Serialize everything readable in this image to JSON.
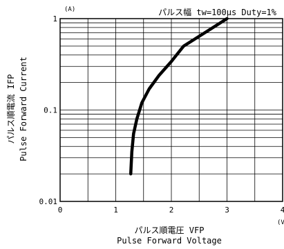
{
  "chart_data": {
    "type": "line",
    "title": "パルス幅 tw=100μs Duty=1%",
    "y_unit": "(A)",
    "x_unit": "(V)",
    "xlabel_jp": "パルス順電圧 VFP",
    "xlabel_en": "Pulse Forward Voltage",
    "ylabel_jp": "パルス順電流 IFP",
    "ylabel_en": "Pulse Forward Current",
    "x_scale": "linear",
    "y_scale": "log",
    "xlim": [
      0,
      4
    ],
    "ylim": [
      0.01,
      1
    ],
    "x_ticks": [
      "0",
      "1",
      "2",
      "3",
      "4"
    ],
    "y_ticks": [
      "0.01",
      "0.1",
      "1"
    ],
    "grid": true,
    "series": [
      {
        "color": "#000000",
        "x": [
          1.27,
          1.29,
          1.32,
          1.38,
          1.47,
          1.6,
          1.78,
          2.0,
          2.22,
          2.6,
          3.0
        ],
        "y": [
          0.02,
          0.035,
          0.055,
          0.08,
          0.12,
          0.17,
          0.24,
          0.34,
          0.5,
          0.7,
          1.0
        ]
      }
    ]
  }
}
